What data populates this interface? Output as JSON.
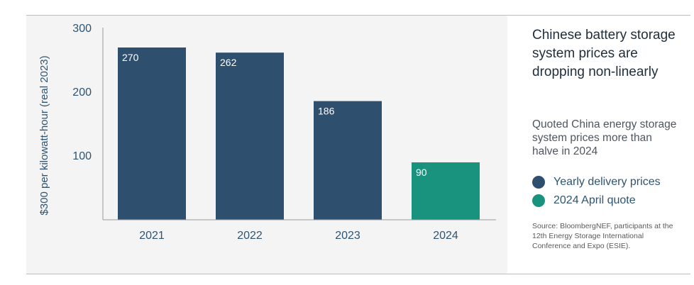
{
  "chart_data": {
    "type": "bar",
    "title": "Chinese battery storage system prices are dropping non-linearly",
    "subtitle": "Quoted China energy storage system prices more than halve in 2024",
    "ylabel": "$300 per kilowatt-hour (real 2023)",
    "xlabel": "",
    "ylim": [
      0,
      300
    ],
    "yticks": [
      100,
      200,
      300
    ],
    "categories": [
      "2021",
      "2022",
      "2023",
      "2024"
    ],
    "values": [
      270,
      262,
      186,
      90
    ],
    "value_labels": [
      "270",
      "262",
      "186",
      "90"
    ],
    "bar_series": [
      "Yearly delivery prices",
      "Yearly delivery prices",
      "Yearly delivery prices",
      "2024 April quote"
    ],
    "series": [
      {
        "name": "Yearly delivery prices",
        "color": "#2f4f6f"
      },
      {
        "name": "2024 April quote",
        "color": "#1a937e"
      }
    ],
    "legend_position": "right",
    "grid": false,
    "source": "Source: BloombergNEF, participants at the 12th Energy Storage International Conference and Expo (ESIE)."
  }
}
